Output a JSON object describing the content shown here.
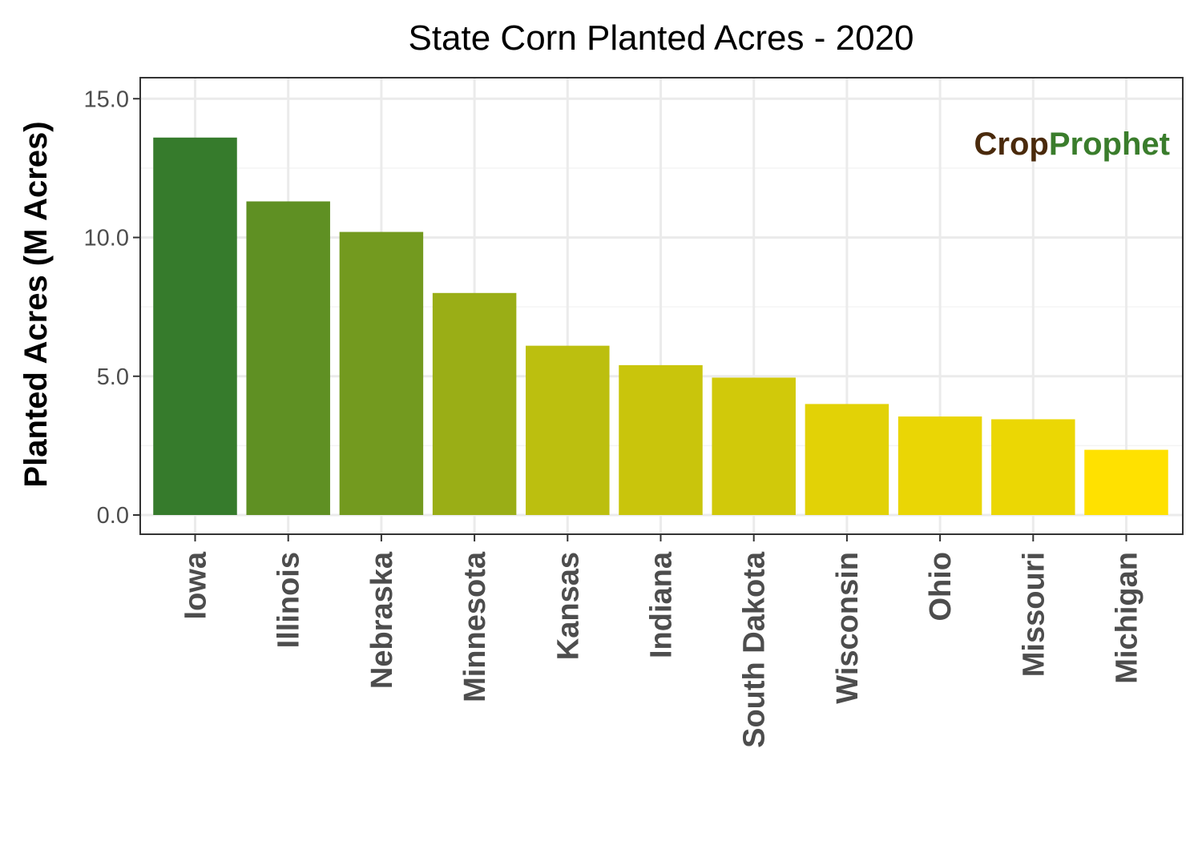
{
  "chart_data": {
    "type": "bar",
    "title": "State Corn Planted Acres - 2020",
    "xlabel": "",
    "ylabel": "Planted Acres (M Acres)",
    "categories": [
      "Iowa",
      "Illinois",
      "Nebraska",
      "Minnesota",
      "Kansas",
      "Indiana",
      "South Dakota",
      "Wisconsin",
      "Ohio",
      "Missouri",
      "Michigan"
    ],
    "values": [
      13.6,
      11.3,
      10.2,
      8.0,
      6.1,
      5.4,
      4.95,
      4.0,
      3.55,
      3.45,
      2.35
    ],
    "yticks": [
      "0.0",
      "5.0",
      "10.0",
      "15.0"
    ],
    "ylim": [
      0,
      15.8
    ],
    "grid": true,
    "legend": "none",
    "colors": {
      "bar_gradient_start": "#367b2c",
      "bar_gradient_end": "#ffe100",
      "panel_border": "#333333",
      "grid_major": "#ebebeb",
      "grid_minor": "#f4f4f4"
    }
  },
  "watermark": {
    "part1": "Crop",
    "part2": "Prophet",
    "color1": "#4a2a0c",
    "color2": "#3a7d2c"
  }
}
